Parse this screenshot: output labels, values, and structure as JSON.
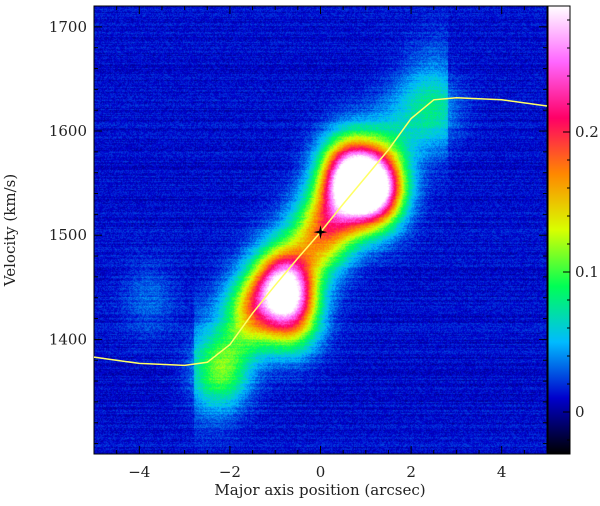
{
  "chart_data": {
    "type": "heatmap",
    "title": "",
    "xlabel": "Major axis position (arcsec)",
    "ylabel": "Velocity (km/s)",
    "xlim": [
      -5,
      5
    ],
    "ylim": [
      1290,
      1720
    ],
    "x_ticks": [
      -4,
      -2,
      0,
      2,
      4
    ],
    "x_tick_labels": [
      "−4",
      "−2",
      "0",
      "2",
      "4"
    ],
    "y_ticks": [
      1400,
      1500,
      1600,
      1700
    ],
    "y_tick_labels": [
      "1400",
      "1500",
      "1600",
      "1700"
    ],
    "colorbar": {
      "range": [
        -0.03,
        0.29
      ],
      "ticks": [
        0,
        0.1,
        0.2
      ],
      "tick_labels": [
        "0",
        "0.1",
        "0.2"
      ],
      "stops": [
        "#000000",
        "#0000cc",
        "#00bbff",
        "#00ff55",
        "#d8ff00",
        "#ff8800",
        "#ff0066",
        "#ff66ff",
        "#ffffff"
      ]
    },
    "emission_blobs": [
      {
        "x": 1.2,
        "y": 1545,
        "peak": 0.28
      },
      {
        "x": 0.6,
        "y": 1560,
        "peak": 0.2
      },
      {
        "x": -0.8,
        "y": 1450,
        "peak": 0.23
      },
      {
        "x": -0.6,
        "y": 1420,
        "peak": 0.1
      },
      {
        "x": -1.5,
        "y": 1430,
        "peak": 0.09
      },
      {
        "x": 0.0,
        "y": 1500,
        "peak": 0.085
      },
      {
        "x": 0.5,
        "y": 1530,
        "peak": 0.09
      },
      {
        "x": -2.2,
        "y": 1370,
        "peak": 0.07
      },
      {
        "x": 2.5,
        "y": 1620,
        "peak": 0.035
      },
      {
        "x": -3.8,
        "y": 1440,
        "peak": 0.02
      }
    ],
    "rotation_curve": {
      "x": [
        -5.0,
        -4.0,
        -3.0,
        -2.5,
        -2.0,
        -1.5,
        -1.0,
        -0.5,
        0.0,
        0.5,
        1.0,
        1.5,
        2.0,
        2.5,
        3.0,
        4.0,
        5.0
      ],
      "y": [
        1383,
        1377,
        1375,
        1378,
        1395,
        1425,
        1452,
        1478,
        1503,
        1530,
        1556,
        1582,
        1612,
        1630,
        1632,
        1630,
        1624
      ]
    },
    "center_marker": {
      "x": 0.0,
      "y": 1503
    }
  }
}
